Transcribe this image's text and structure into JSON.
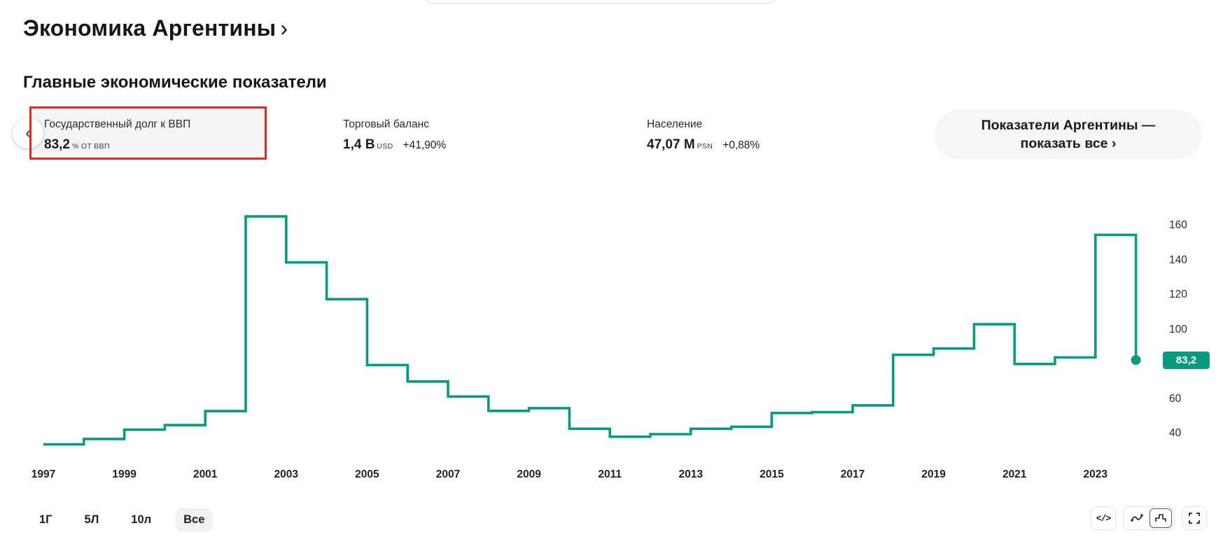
{
  "page": {
    "title": "Экономика Аргентины",
    "title_chevron": "›",
    "section_heading": "Главные экономические показатели"
  },
  "indicators": {
    "prev_label": "‹",
    "cards": [
      {
        "label": "Государственный долг к ВВП",
        "value": "83,2",
        "unit": "% от ВВП",
        "change": "",
        "selected": true
      },
      {
        "label": "Торговый баланс",
        "value": "1,4 B",
        "unit": "USD",
        "change": "+41,90%",
        "selected": false
      },
      {
        "label": "Население",
        "value": "47,07 M",
        "unit": "PSN",
        "change": "+0,88%",
        "selected": false
      }
    ],
    "show_all_button": {
      "line1": "Показатели Аргентины —",
      "line2": "показать все ›"
    }
  },
  "chart_data": {
    "type": "line",
    "subtype": "step-after",
    "title": "Государственный долг к ВВП",
    "ylabel": "% от ВВП",
    "x": [
      1997,
      1998,
      1999,
      2000,
      2001,
      2002,
      2003,
      2004,
      2005,
      2006,
      2007,
      2008,
      2009,
      2010,
      2011,
      2012,
      2013,
      2014,
      2015,
      2016,
      2017,
      2018,
      2019,
      2020,
      2021,
      2022,
      2023,
      2024
    ],
    "values": [
      34.5,
      37.6,
      43.0,
      45.6,
      53.7,
      166.0,
      139.5,
      118.3,
      80.3,
      70.8,
      62.1,
      53.8,
      55.4,
      43.5,
      38.9,
      40.4,
      43.5,
      44.7,
      52.6,
      53.1,
      57.0,
      86.2,
      89.8,
      103.8,
      80.9,
      84.7,
      155.4,
      83.2
    ],
    "current_value": 83.2,
    "current_value_label": "83,2",
    "y_ticks": [
      160,
      140,
      120,
      100,
      80,
      60,
      40
    ],
    "x_tick_labels": [
      "1997",
      "1999",
      "2001",
      "2003",
      "2005",
      "2007",
      "2009",
      "2011",
      "2013",
      "2015",
      "2017",
      "2019",
      "2021",
      "2023"
    ],
    "ylim": [
      40,
      160
    ],
    "axis_side": "right",
    "grid": false,
    "legend_position": "none",
    "line_color": "#089981",
    "last_point_marker": "dot"
  },
  "toolbar": {
    "ranges": [
      {
        "label": "1Г",
        "selected": false
      },
      {
        "label": "5Л",
        "selected": false
      },
      {
        "label": "10л",
        "selected": false
      },
      {
        "label": "Все",
        "selected": true
      }
    ],
    "embed_label": "</>",
    "icons": [
      "embed-code",
      "line-chart",
      "step-chart",
      "fullscreen"
    ]
  },
  "colors": {
    "accent_teal": "#089981",
    "positive_change": "#089981",
    "annotation_red": "#e8281e",
    "card_background": "#f5f5f5",
    "pill_background": "#f6f6f6"
  }
}
